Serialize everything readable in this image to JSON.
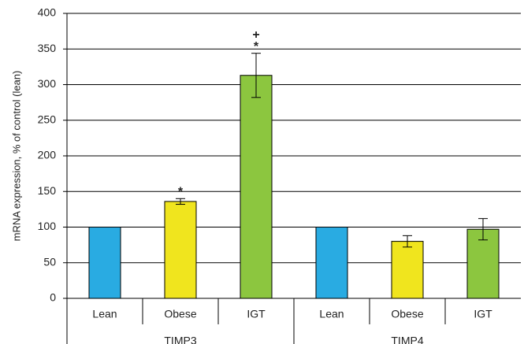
{
  "chart_data": {
    "type": "bar",
    "y_label": "mRNA expression, % of control (lean)",
    "groups": [
      "TIMP3",
      "TIMP4"
    ],
    "categories": [
      "Lean",
      "Obese",
      "IGT",
      "Lean",
      "Obese",
      "IGT"
    ],
    "values": [
      100,
      136,
      313,
      100,
      80,
      97
    ],
    "errors": [
      0,
      4,
      31,
      0,
      8,
      15
    ],
    "colors": [
      "#29abe2",
      "#f0e51e",
      "#8cc63f",
      "#29abe2",
      "#f0e51e",
      "#8cc63f"
    ],
    "annotations": [
      {
        "text": "*",
        "group": "TIMP3",
        "category": "Obese"
      },
      {
        "text": "*",
        "group": "TIMP3",
        "category": "IGT"
      },
      {
        "text": "+",
        "group": "TIMP3",
        "category": "IGT"
      }
    ],
    "ylim": [
      0,
      400
    ],
    "yticks": [
      0,
      50,
      100,
      150,
      200,
      250,
      300,
      350,
      400
    ],
    "grid": true
  }
}
